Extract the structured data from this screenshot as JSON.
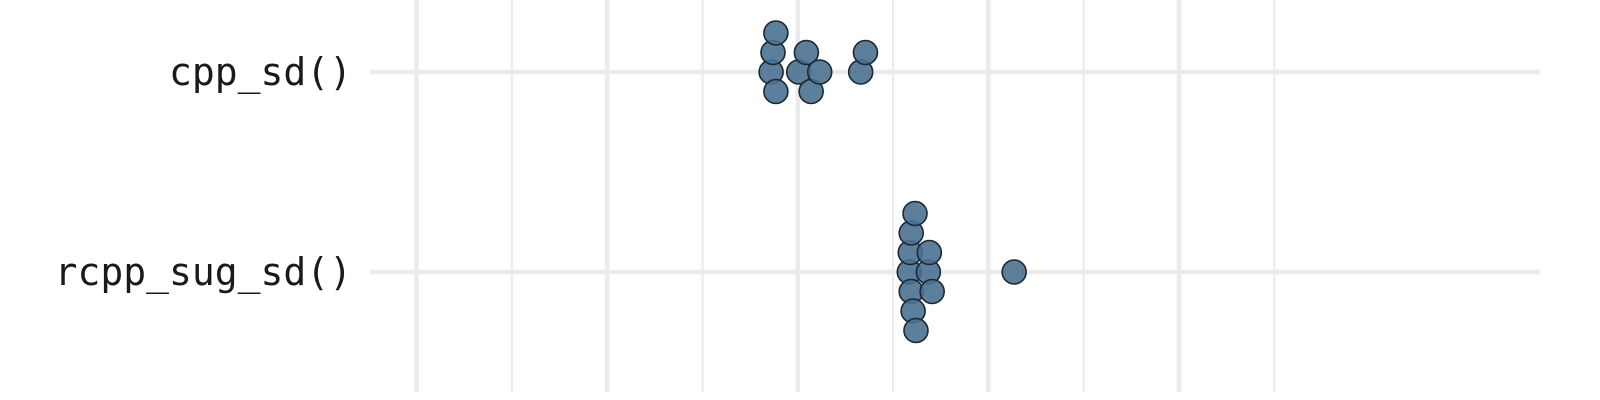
{
  "chart_data": {
    "type": "scatter",
    "style": "beeswarm",
    "categories": [
      "cpp_sd()",
      "rcpp_sug_sd()"
    ],
    "xlim": [
      0,
      1
    ],
    "x_major_ticks": [
      0.2,
      0.4,
      0.6,
      0.8,
      1.0
    ],
    "x_minor_ticks": [
      0.1,
      0.3,
      0.5,
      0.7,
      0.9,
      1.1
    ],
    "grid": true,
    "axis_text_x": false,
    "point_color": "#4a7191",
    "point_alpha": 0.9,
    "series": [
      {
        "category": "cpp_sd()",
        "x": [
          0.577,
          0.574,
          0.572,
          0.609,
          0.601,
          0.614,
          0.577,
          0.623,
          0.671,
          0.666
        ]
      },
      {
        "category": "rcpp_sug_sd()",
        "x": [
          0.724,
          0.723,
          0.721,
          0.719,
          0.741,
          0.717,
          0.719,
          0.718,
          0.737,
          0.738,
          0.827
        ]
      }
    ]
  }
}
